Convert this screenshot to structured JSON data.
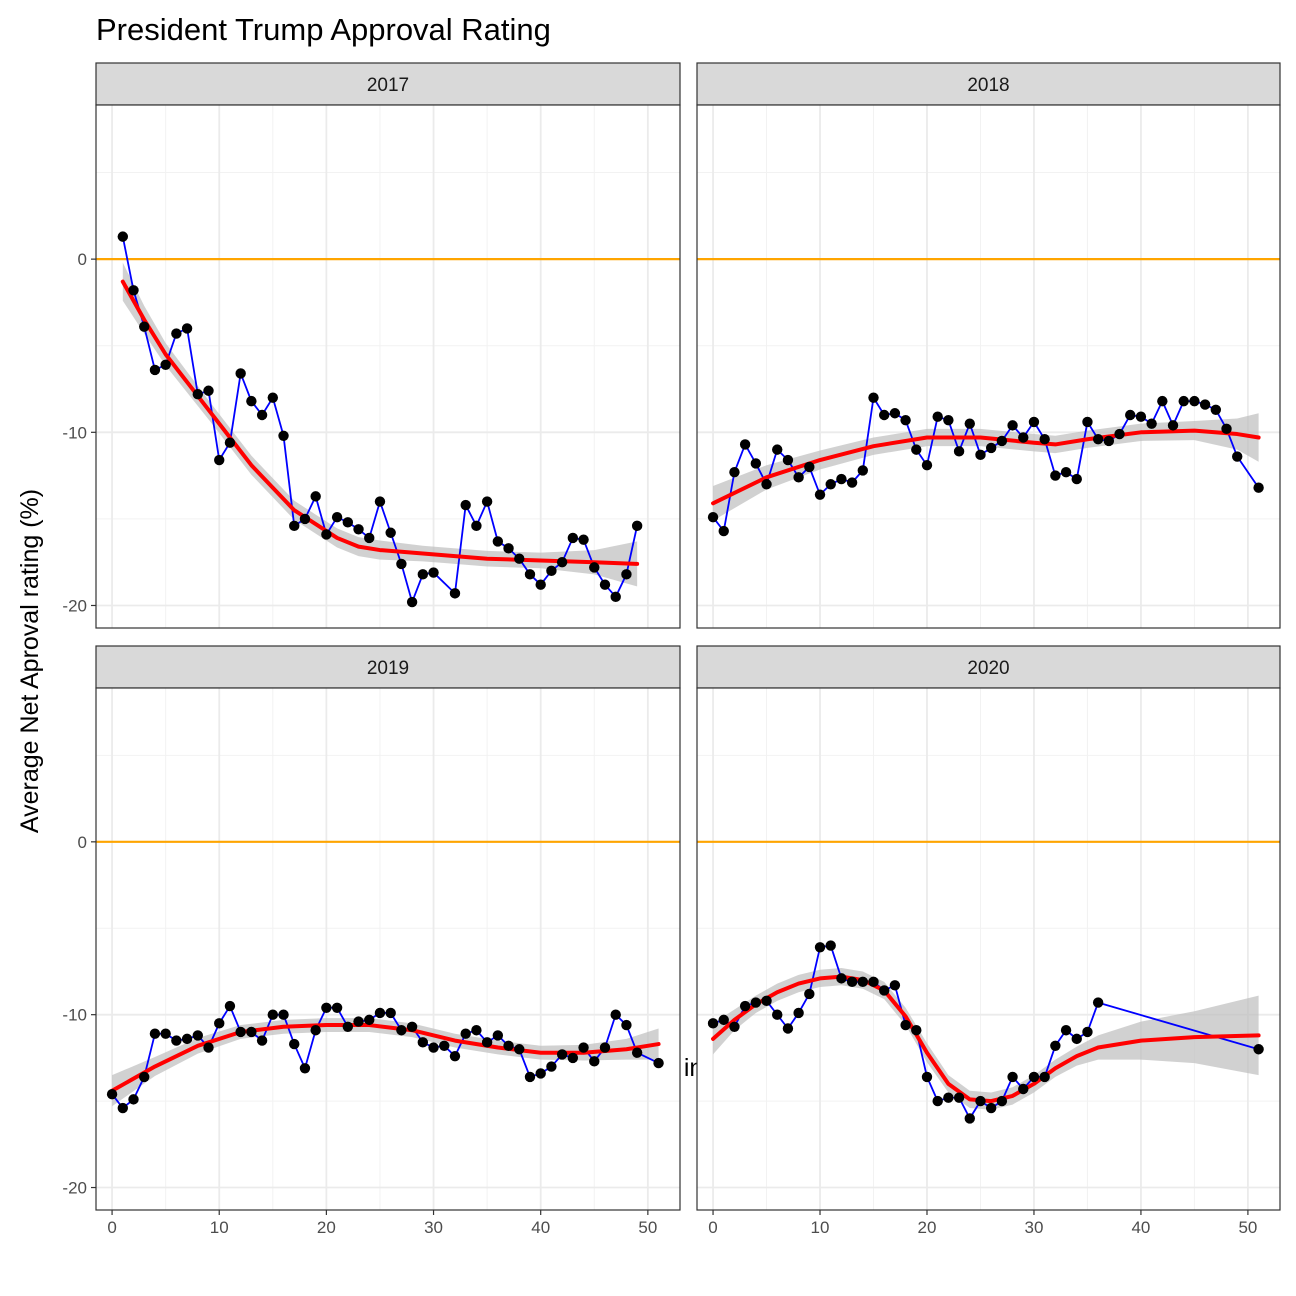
{
  "chart_data": {
    "type": "line",
    "title": "President Trump Approval Rating",
    "xlabel": "Weeks in Office",
    "ylabel": "Average Net Aproval rating (%)",
    "x_ticks": [
      0,
      10,
      20,
      30,
      40,
      50
    ],
    "y_ticks": [
      0,
      -10,
      -20
    ],
    "xlim": [
      -1.5,
      53
    ],
    "ylim": [
      -21.3,
      8.9
    ],
    "reference_line": {
      "y": 0,
      "color": "#FFA500"
    },
    "grid": true,
    "colors": {
      "line": "#0000FF",
      "point": "#000000",
      "smooth": "#FF0000",
      "ribbon": "#BEBEBE",
      "strip_fill": "#D9D9D9",
      "gridline": "#EBEBEB",
      "panel_border": "#333333"
    },
    "panels": [
      {
        "label": "2017",
        "x": [
          1,
          2,
          3,
          4,
          5,
          6,
          7,
          8,
          9,
          10,
          11,
          12,
          13,
          14,
          15,
          16,
          17,
          18,
          19,
          20,
          21,
          22,
          23,
          24,
          25,
          26,
          27,
          28,
          29,
          30,
          32,
          33,
          34,
          35,
          36,
          37,
          38,
          39,
          40,
          41,
          42,
          43,
          44,
          45,
          46,
          47,
          48,
          49
        ],
        "y": [
          1.3,
          -1.8,
          -3.9,
          -6.4,
          -6.1,
          -4.3,
          -4.0,
          -7.8,
          -7.6,
          -11.6,
          -10.6,
          -6.6,
          -8.2,
          -9.0,
          -8.0,
          -10.2,
          -15.4,
          -15.0,
          -13.7,
          -15.9,
          -14.9,
          -15.2,
          -15.6,
          -16.1,
          -14.0,
          -15.8,
          -17.6,
          -19.8,
          -18.2,
          -18.1,
          -19.3,
          -14.2,
          -15.4,
          -14.0,
          -16.3,
          -16.7,
          -17.3,
          -18.2,
          -18.8,
          -18.0,
          -17.5,
          -16.1,
          -16.2,
          -17.8,
          -18.8,
          -19.5,
          -18.2,
          -15.4
        ],
        "smooth_x": [
          1,
          3,
          5,
          7,
          9,
          11,
          13,
          15,
          17,
          19,
          21,
          23,
          25,
          27,
          29,
          31,
          35,
          40,
          45,
          49
        ],
        "smooth_y": [
          -1.3,
          -3.5,
          -5.5,
          -7.1,
          -8.7,
          -10.3,
          -11.9,
          -13.2,
          -14.5,
          -15.3,
          -16.1,
          -16.6,
          -16.8,
          -16.9,
          -17.0,
          -17.1,
          -17.3,
          -17.4,
          -17.5,
          -17.6
        ],
        "smooth_se": [
          1.1,
          0.8,
          0.65,
          0.6,
          0.55,
          0.55,
          0.55,
          0.55,
          0.55,
          0.55,
          0.55,
          0.55,
          0.55,
          0.5,
          0.45,
          0.45,
          0.45,
          0.45,
          0.7,
          1.3
        ]
      },
      {
        "label": "2018",
        "x": [
          0,
          1,
          2,
          3,
          4,
          5,
          6,
          7,
          8,
          9,
          10,
          11,
          12,
          13,
          14,
          15,
          16,
          17,
          18,
          19,
          20,
          21,
          22,
          23,
          24,
          25,
          26,
          27,
          28,
          29,
          30,
          31,
          32,
          33,
          34,
          35,
          36,
          37,
          38,
          39,
          40,
          41,
          42,
          43,
          44,
          45,
          46,
          47,
          48,
          49,
          51
        ],
        "y": [
          -14.9,
          -15.7,
          -12.3,
          -10.7,
          -11.8,
          -13.0,
          -11.0,
          -11.6,
          -12.6,
          -12.0,
          -13.6,
          -13.0,
          -12.7,
          -12.9,
          -12.2,
          -8.0,
          -9.0,
          -8.9,
          -9.3,
          -11.0,
          -11.9,
          -9.1,
          -9.3,
          -11.1,
          -9.5,
          -11.3,
          -10.9,
          -10.5,
          -9.6,
          -10.3,
          -9.4,
          -10.4,
          -12.5,
          -12.3,
          -12.7,
          -9.4,
          -10.4,
          -10.5,
          -10.1,
          -9.0,
          -9.1,
          -9.5,
          -8.2,
          -9.6,
          -8.2,
          -8.2,
          -8.4,
          -8.7,
          -9.8,
          -11.4,
          -13.2
        ],
        "smooth_x": [
          0,
          5,
          10,
          15,
          20,
          25,
          30,
          32,
          35,
          40,
          45,
          49,
          51
        ],
        "smooth_y": [
          -14.1,
          -12.6,
          -11.6,
          -10.8,
          -10.3,
          -10.3,
          -10.6,
          -10.7,
          -10.4,
          -10.0,
          -9.9,
          -10.1,
          -10.3
        ],
        "smooth_se": [
          1.0,
          0.7,
          0.55,
          0.5,
          0.5,
          0.5,
          0.5,
          0.5,
          0.5,
          0.5,
          0.55,
          0.9,
          1.4
        ]
      },
      {
        "label": "2019",
        "x": [
          0,
          1,
          2,
          3,
          4,
          5,
          6,
          7,
          8,
          9,
          10,
          11,
          12,
          13,
          14,
          15,
          16,
          17,
          18,
          19,
          20,
          21,
          22,
          23,
          24,
          25,
          26,
          27,
          28,
          29,
          30,
          31,
          32,
          33,
          34,
          35,
          36,
          37,
          38,
          39,
          40,
          41,
          42,
          43,
          44,
          45,
          46,
          47,
          48,
          49,
          51
        ],
        "y": [
          -14.6,
          -15.4,
          -14.9,
          -13.6,
          -11.1,
          -11.1,
          -11.5,
          -11.4,
          -11.2,
          -11.9,
          -10.5,
          -9.5,
          -11.0,
          -11.0,
          -11.5,
          -10.0,
          -10.0,
          -11.7,
          -13.1,
          -10.9,
          -9.6,
          -9.6,
          -10.7,
          -10.4,
          -10.3,
          -9.9,
          -9.9,
          -10.9,
          -10.7,
          -11.6,
          -11.9,
          -11.8,
          -12.4,
          -11.1,
          -10.9,
          -11.6,
          -11.2,
          -11.8,
          -12.0,
          -13.6,
          -13.4,
          -13.0,
          -12.3,
          -12.5,
          -11.9,
          -12.7,
          -11.9,
          -10.0,
          -10.6,
          -12.2,
          -12.8
        ],
        "smooth_x": [
          0,
          4,
          8,
          12,
          16,
          20,
          24,
          28,
          32,
          36,
          40,
          44,
          48,
          51
        ],
        "smooth_y": [
          -14.4,
          -13.0,
          -11.8,
          -11.0,
          -10.7,
          -10.6,
          -10.6,
          -10.9,
          -11.5,
          -11.9,
          -12.2,
          -12.2,
          -12.0,
          -11.7
        ],
        "smooth_se": [
          0.9,
          0.55,
          0.45,
          0.4,
          0.4,
          0.4,
          0.4,
          0.4,
          0.4,
          0.4,
          0.4,
          0.45,
          0.6,
          0.9
        ]
      },
      {
        "label": "2020",
        "x": [
          0,
          1,
          2,
          3,
          4,
          5,
          6,
          7,
          8,
          9,
          10,
          11,
          12,
          13,
          14,
          15,
          16,
          17,
          18,
          19,
          20,
          21,
          22,
          23,
          24,
          25,
          26,
          27,
          28,
          29,
          30,
          31,
          32,
          33,
          34,
          35,
          36,
          51
        ],
        "y": [
          -10.5,
          -10.3,
          -10.7,
          -9.5,
          -9.3,
          -9.2,
          -10.0,
          -10.8,
          -9.9,
          -8.8,
          -6.1,
          -6.0,
          -7.9,
          -8.1,
          -8.1,
          -8.1,
          -8.6,
          -8.3,
          -10.6,
          -10.9,
          -13.6,
          -15.0,
          -14.8,
          -14.8,
          -16.0,
          -15.0,
          -15.4,
          -15.0,
          -13.6,
          -14.3,
          -13.6,
          -13.6,
          -11.8,
          -10.9,
          -11.4,
          -11.0,
          -9.3,
          -12.0
        ],
        "smooth_x": [
          0,
          2,
          4,
          6,
          8,
          10,
          12,
          14,
          16,
          18,
          20,
          22,
          24,
          26,
          28,
          30,
          32,
          34,
          36,
          40,
          45,
          51
        ],
        "smooth_y": [
          -11.4,
          -10.3,
          -9.4,
          -8.7,
          -8.2,
          -7.9,
          -7.8,
          -8.0,
          -8.6,
          -10.1,
          -12.2,
          -14.0,
          -14.9,
          -15.0,
          -14.7,
          -14.0,
          -13.1,
          -12.4,
          -11.9,
          -11.5,
          -11.3,
          -11.2
        ],
        "smooth_se": [
          0.9,
          0.6,
          0.5,
          0.5,
          0.5,
          0.5,
          0.5,
          0.5,
          0.5,
          0.5,
          0.55,
          0.5,
          0.5,
          0.5,
          0.5,
          0.5,
          0.5,
          0.55,
          0.7,
          1.1,
          1.5,
          2.3
        ]
      }
    ]
  }
}
